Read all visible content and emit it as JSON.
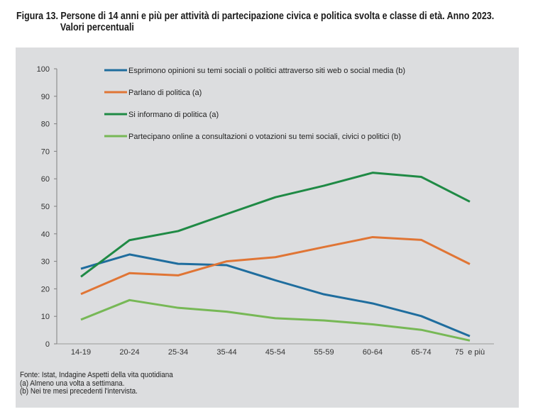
{
  "title": {
    "label": "Figura 13.",
    "line1": "Persone di 14 anni e più per attività di partecipazione civica e politica svolta e classe di età. Anno 2023.",
    "line2": "Valori percentuali"
  },
  "notes": {
    "source": "Fonte: Istat, Indagine Aspetti della vita quotidiana",
    "note_a": "(a) Almeno una volta a settimana.",
    "note_b": "(b) Nei tre mesi precedenti l'intervista."
  },
  "chart_data": {
    "type": "line",
    "title": "Persone di 14 anni e più per attività di partecipazione civica e politica svolta e classe di età. Anno 2023. Valori percentuali",
    "xlabel": "",
    "ylabel": "",
    "ylim": [
      0,
      100
    ],
    "yticks": [
      0,
      10,
      20,
      30,
      40,
      50,
      60,
      70,
      80,
      90,
      100
    ],
    "grid": false,
    "legend_position": "top",
    "categories": [
      "14-19",
      "20-24",
      "25-34",
      "35-44",
      "45-54",
      "55-59",
      "60-64",
      "65-74",
      "75  e più"
    ],
    "series": [
      {
        "name": "Esprimono opinioni su temi sociali o politici attraverso siti web o social media (b)",
        "color": "#1f6d9e",
        "values": [
          27.3,
          32.5,
          29.1,
          28.6,
          23.1,
          18.0,
          14.7,
          10.1,
          2.8
        ]
      },
      {
        "name": "Parlano di politica (a)",
        "color": "#e07535",
        "values": [
          18.1,
          25.7,
          24.9,
          30.0,
          31.5,
          35.2,
          38.8,
          37.8,
          29.0
        ]
      },
      {
        "name": "Si informano di politica (a)",
        "color": "#1f8a45",
        "values": [
          24.4,
          37.7,
          41.0,
          47.2,
          53.3,
          57.5,
          62.2,
          60.7,
          51.7
        ]
      },
      {
        "name": "Partecipano online a consultazioni o votazioni su temi sociali, civici o politici (b)",
        "color": "#77b856",
        "values": [
          8.8,
          15.9,
          13.1,
          11.7,
          9.3,
          8.5,
          7.1,
          5.1,
          1.2
        ]
      }
    ]
  }
}
